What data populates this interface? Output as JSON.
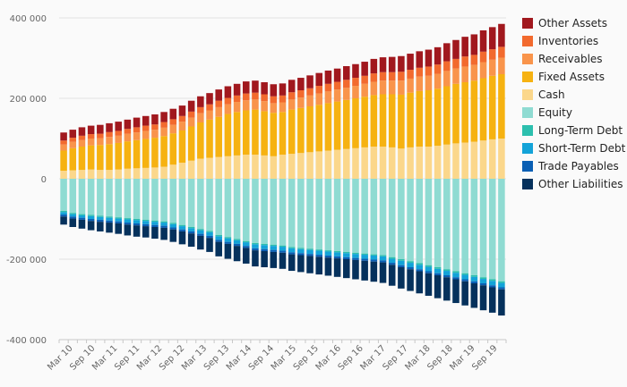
{
  "chart_data": {
    "type": "bar",
    "stacked": true,
    "ylim": [
      -400000,
      400000
    ],
    "yticks": [
      -400000,
      -200000,
      0,
      200000,
      400000
    ],
    "ytick_labels": [
      "-400 000",
      "-200 000",
      "0",
      "200 000",
      "400 000"
    ],
    "grid": true,
    "legend_position": "right",
    "x_labels_shown": [
      "Mar 10",
      "Sep 10",
      "Mar 11",
      "Sep 11",
      "Mar 12",
      "Sep 12",
      "Mar 13",
      "Sep 13",
      "Mar 14",
      "Sep 14",
      "Mar 15",
      "Sep 15",
      "Mar 16",
      "Sep 16",
      "Mar 17",
      "Sep 17",
      "Mar 18",
      "Sep 18",
      "Mar 19",
      "Sep 19"
    ],
    "assets": [
      {
        "name": "Cash",
        "color": "#fbd78b",
        "values": [
          20000,
          21000,
          22000,
          23000,
          22000,
          22000,
          23000,
          25000,
          26000,
          27000,
          28000,
          30000,
          35000,
          40000,
          45000,
          50000,
          52000,
          54000,
          56000,
          58000,
          60000,
          60000,
          58000,
          56000,
          60000,
          62000,
          64000,
          66000,
          68000,
          70000,
          72000,
          74000,
          76000,
          78000,
          80000,
          80000,
          78000,
          75000,
          78000,
          80000,
          80000,
          82000,
          85000,
          88000,
          90000,
          92000,
          95000,
          98000,
          100000
        ]
      },
      {
        "name": "Fixed Assets",
        "color": "#f6b211",
        "values": [
          50000,
          55000,
          58000,
          60000,
          62000,
          64000,
          66000,
          68000,
          70000,
          72000,
          74000,
          76000,
          78000,
          80000,
          85000,
          90000,
          95000,
          100000,
          105000,
          108000,
          110000,
          112000,
          110000,
          108000,
          106000,
          110000,
          112000,
          114000,
          116000,
          118000,
          120000,
          122000,
          124000,
          126000,
          128000,
          130000,
          132000,
          134000,
          136000,
          138000,
          140000,
          142000,
          145000,
          148000,
          150000,
          152000,
          155000,
          158000,
          160000
        ]
      },
      {
        "name": "Receivables",
        "color": "#f9944b",
        "values": [
          15000,
          16000,
          16000,
          17000,
          17000,
          18000,
          18000,
          19000,
          19000,
          20000,
          20000,
          21000,
          21000,
          22000,
          22000,
          23000,
          23000,
          24000,
          24000,
          25000,
          25000,
          25000,
          25000,
          24000,
          24000,
          25000,
          26000,
          27000,
          28000,
          29000,
          30000,
          30000,
          31000,
          32000,
          33000,
          34000,
          34000,
          35000,
          35000,
          36000,
          36000,
          37000,
          38000,
          38000,
          39000,
          39000,
          40000,
          40000,
          41000
        ]
      },
      {
        "name": "Inventories",
        "color": "#f26a2e",
        "values": [
          10000,
          10000,
          11000,
          11000,
          11000,
          12000,
          12000,
          12000,
          13000,
          13000,
          13000,
          14000,
          14000,
          14000,
          15000,
          15000,
          15000,
          16000,
          16000,
          16000,
          17000,
          17000,
          17000,
          17000,
          17000,
          18000,
          18000,
          18000,
          19000,
          19000,
          19000,
          20000,
          20000,
          20000,
          21000,
          21000,
          21000,
          22000,
          22000,
          22000,
          23000,
          23000,
          24000,
          24000,
          25000,
          25000,
          26000,
          26000,
          27000
        ]
      },
      {
        "name": "Other Assets",
        "color": "#a1181e",
        "values": [
          20000,
          20000,
          21000,
          21000,
          22000,
          22000,
          23000,
          23000,
          24000,
          24000,
          25000,
          25000,
          26000,
          26000,
          27000,
          27000,
          28000,
          28000,
          29000,
          29000,
          30000,
          30000,
          30000,
          30000,
          30000,
          31000,
          31000,
          32000,
          32000,
          33000,
          33000,
          34000,
          34000,
          35000,
          36000,
          37000,
          38000,
          39000,
          40000,
          41000,
          42000,
          43000,
          45000,
          47000,
          49000,
          51000,
          53000,
          55000,
          57000
        ]
      }
    ],
    "liabilities": [
      {
        "name": "Equity",
        "color": "#8fdbd2",
        "values": [
          -80000,
          -85000,
          -88000,
          -90000,
          -92000,
          -94000,
          -96000,
          -98000,
          -100000,
          -102000,
          -104000,
          -106000,
          -110000,
          -115000,
          -120000,
          -125000,
          -130000,
          -140000,
          -145000,
          -150000,
          -155000,
          -160000,
          -162000,
          -164000,
          -166000,
          -170000,
          -172000,
          -174000,
          -176000,
          -178000,
          -180000,
          -182000,
          -184000,
          -186000,
          -188000,
          -190000,
          -195000,
          -200000,
          -205000,
          -210000,
          -215000,
          -220000,
          -225000,
          -230000,
          -235000,
          -240000,
          -245000,
          -250000,
          -255000
        ]
      },
      {
        "name": "Long-Term Debt",
        "color": "#2cbfae",
        "values": [
          -3000,
          -3000,
          -3000,
          -3000,
          -3000,
          -3000,
          -3000,
          -3000,
          -3000,
          -3000,
          -3000,
          -3000,
          -3000,
          -3000,
          -3000,
          -3000,
          -3000,
          -3000,
          -3000,
          -3000,
          -3000,
          -3000,
          -3000,
          -3000,
          -3000,
          -3000,
          -3000,
          -3000,
          -3000,
          -3000,
          -3000,
          -3000,
          -3000,
          -3000,
          -3000,
          -3000,
          -4000,
          -4000,
          -4000,
          -4000,
          -4000,
          -4000,
          -4000,
          -4000,
          -4000,
          -4000,
          -4000,
          -4000,
          -4000
        ]
      },
      {
        "name": "Short-Term Debt",
        "color": "#13a3d8",
        "values": [
          -6000,
          -6000,
          -6000,
          -7000,
          -7000,
          -7000,
          -7000,
          -8000,
          -8000,
          -8000,
          -8000,
          -8000,
          -8000,
          -8000,
          -8000,
          -9000,
          -9000,
          -9000,
          -9000,
          -9000,
          -9000,
          -10000,
          -10000,
          -10000,
          -10000,
          -10000,
          -10000,
          -10000,
          -10000,
          -10000,
          -10000,
          -10000,
          -10000,
          -10000,
          -10000,
          -10000,
          -10000,
          -11000,
          -11000,
          -11000,
          -11000,
          -11000,
          -11000,
          -11000,
          -11000,
          -11000,
          -11000,
          -11000,
          -11000
        ]
      },
      {
        "name": "Trade Payables",
        "color": "#0a5fb4",
        "values": [
          -5000,
          -5000,
          -5000,
          -5000,
          -5000,
          -5000,
          -5000,
          -5000,
          -5000,
          -5000,
          -5000,
          -5000,
          -5000,
          -5000,
          -5000,
          -5000,
          -5000,
          -5000,
          -5000,
          -5000,
          -5000,
          -5000,
          -5000,
          -5000,
          -5000,
          -5000,
          -5000,
          -5000,
          -5000,
          -5000,
          -5000,
          -5000,
          -5000,
          -5000,
          -5000,
          -5000,
          -5000,
          -5000,
          -5000,
          -5000,
          -5000,
          -5000,
          -5000,
          -5000,
          -5000,
          -5000,
          -5000,
          -5000,
          -5000
        ]
      },
      {
        "name": "Other Liabilities",
        "color": "#05315c",
        "values": [
          -20000,
          -21000,
          -22000,
          -23000,
          -24000,
          -25000,
          -26000,
          -27000,
          -28000,
          -28000,
          -29000,
          -30000,
          -31000,
          -32000,
          -33000,
          -34000,
          -35000,
          -36000,
          -37000,
          -38000,
          -39000,
          -40000,
          -40000,
          -40000,
          -40000,
          -41000,
          -42000,
          -43000,
          -44000,
          -45000,
          -46000,
          -47000,
          -48000,
          -49000,
          -50000,
          -51000,
          -52000,
          -53000,
          -54000,
          -55000,
          -56000,
          -57000,
          -58000,
          -59000,
          -60000,
          -61000,
          -62000,
          -63000,
          -65000
        ]
      }
    ],
    "legend": [
      {
        "name": "Other Assets",
        "color": "#a1181e"
      },
      {
        "name": "Inventories",
        "color": "#f26a2e"
      },
      {
        "name": "Receivables",
        "color": "#f9944b"
      },
      {
        "name": "Fixed Assets",
        "color": "#f6b211"
      },
      {
        "name": "Cash",
        "color": "#fbd78b"
      },
      {
        "name": "Equity",
        "color": "#8fdbd2"
      },
      {
        "name": "Long-Term Debt",
        "color": "#2cbfae"
      },
      {
        "name": "Short-Term Debt",
        "color": "#13a3d8"
      },
      {
        "name": "Trade Payables",
        "color": "#0a5fb4"
      },
      {
        "name": "Other Liabilities",
        "color": "#05315c"
      }
    ]
  }
}
